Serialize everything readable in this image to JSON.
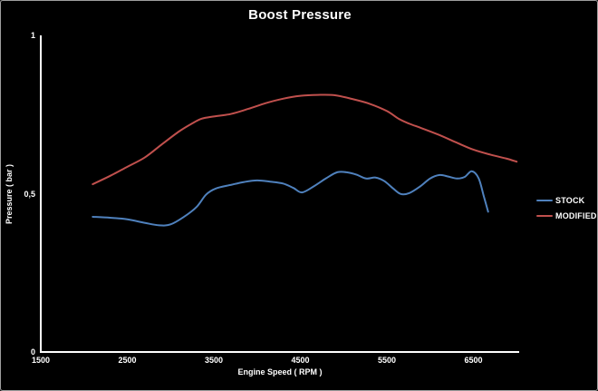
{
  "title": "Boost Pressure",
  "axes": {
    "x": {
      "label": "Engine Speed ( RPM )",
      "ticks": [
        {
          "label": "1500",
          "value": 1500
        },
        {
          "label": "2500",
          "value": 2500
        },
        {
          "label": "3500",
          "value": 3500
        },
        {
          "label": "4500",
          "value": 4500
        },
        {
          "label": "5500",
          "value": 5500
        },
        {
          "label": "6500",
          "value": 6500
        }
      ]
    },
    "y": {
      "label": "Pressure ( bar )",
      "ticks": [
        {
          "label": "0",
          "value": 0
        },
        {
          "label": "0,5",
          "value": 0.5
        },
        {
          "label": "1",
          "value": 1
        }
      ]
    }
  },
  "legend": [
    {
      "label": "STOCK",
      "color": "#4f81bd"
    },
    {
      "label": "MODIFIED",
      "color": "#c0504d"
    }
  ],
  "colors": {
    "background": "#000000",
    "axis": "#ffffff",
    "text": "#ffffff",
    "stock_line": "#4f81bd",
    "modified_line": "#c0504d"
  },
  "chart_data": {
    "type": "line",
    "title": "Boost Pressure",
    "xlabel": "Engine Speed ( RPM )",
    "ylabel": "Pressure ( bar )",
    "xlim": [
      1500,
      7050
    ],
    "ylim": [
      0,
      1
    ],
    "x_ticks": [
      1500,
      2500,
      3500,
      4500,
      5500,
      6500
    ],
    "y_ticks": [
      0,
      0.5,
      1
    ],
    "grid": false,
    "legend_position": "right",
    "series": [
      {
        "name": "STOCK",
        "color": "#4f81bd",
        "points": [
          [
            2100,
            0.427
          ],
          [
            2300,
            0.424
          ],
          [
            2500,
            0.419
          ],
          [
            2700,
            0.408
          ],
          [
            2870,
            0.4
          ],
          [
            3000,
            0.403
          ],
          [
            3150,
            0.426
          ],
          [
            3300,
            0.458
          ],
          [
            3410,
            0.497
          ],
          [
            3520,
            0.516
          ],
          [
            3700,
            0.528
          ],
          [
            3850,
            0.537
          ],
          [
            4000,
            0.542
          ],
          [
            4150,
            0.538
          ],
          [
            4300,
            0.532
          ],
          [
            4420,
            0.518
          ],
          [
            4520,
            0.504
          ],
          [
            4660,
            0.524
          ],
          [
            4800,
            0.549
          ],
          [
            4930,
            0.568
          ],
          [
            5050,
            0.567
          ],
          [
            5150,
            0.56
          ],
          [
            5260,
            0.548
          ],
          [
            5370,
            0.551
          ],
          [
            5470,
            0.54
          ],
          [
            5570,
            0.517
          ],
          [
            5660,
            0.499
          ],
          [
            5760,
            0.502
          ],
          [
            5890,
            0.524
          ],
          [
            6000,
            0.548
          ],
          [
            6110,
            0.559
          ],
          [
            6210,
            0.554
          ],
          [
            6310,
            0.548
          ],
          [
            6400,
            0.553
          ],
          [
            6480,
            0.571
          ],
          [
            6560,
            0.549
          ],
          [
            6620,
            0.492
          ],
          [
            6670,
            0.443
          ]
        ]
      },
      {
        "name": "MODIFIED",
        "color": "#c0504d",
        "points": [
          [
            2100,
            0.53
          ],
          [
            2300,
            0.556
          ],
          [
            2500,
            0.585
          ],
          [
            2700,
            0.614
          ],
          [
            2900,
            0.656
          ],
          [
            3100,
            0.697
          ],
          [
            3250,
            0.722
          ],
          [
            3360,
            0.737
          ],
          [
            3500,
            0.744
          ],
          [
            3700,
            0.752
          ],
          [
            3900,
            0.768
          ],
          [
            4100,
            0.786
          ],
          [
            4300,
            0.8
          ],
          [
            4500,
            0.809
          ],
          [
            4700,
            0.812
          ],
          [
            4900,
            0.811
          ],
          [
            5100,
            0.799
          ],
          [
            5300,
            0.784
          ],
          [
            5500,
            0.761
          ],
          [
            5640,
            0.736
          ],
          [
            5760,
            0.721
          ],
          [
            5900,
            0.707
          ],
          [
            6100,
            0.686
          ],
          [
            6300,
            0.662
          ],
          [
            6500,
            0.639
          ],
          [
            6700,
            0.623
          ],
          [
            6880,
            0.611
          ],
          [
            7000,
            0.601
          ]
        ]
      }
    ]
  }
}
